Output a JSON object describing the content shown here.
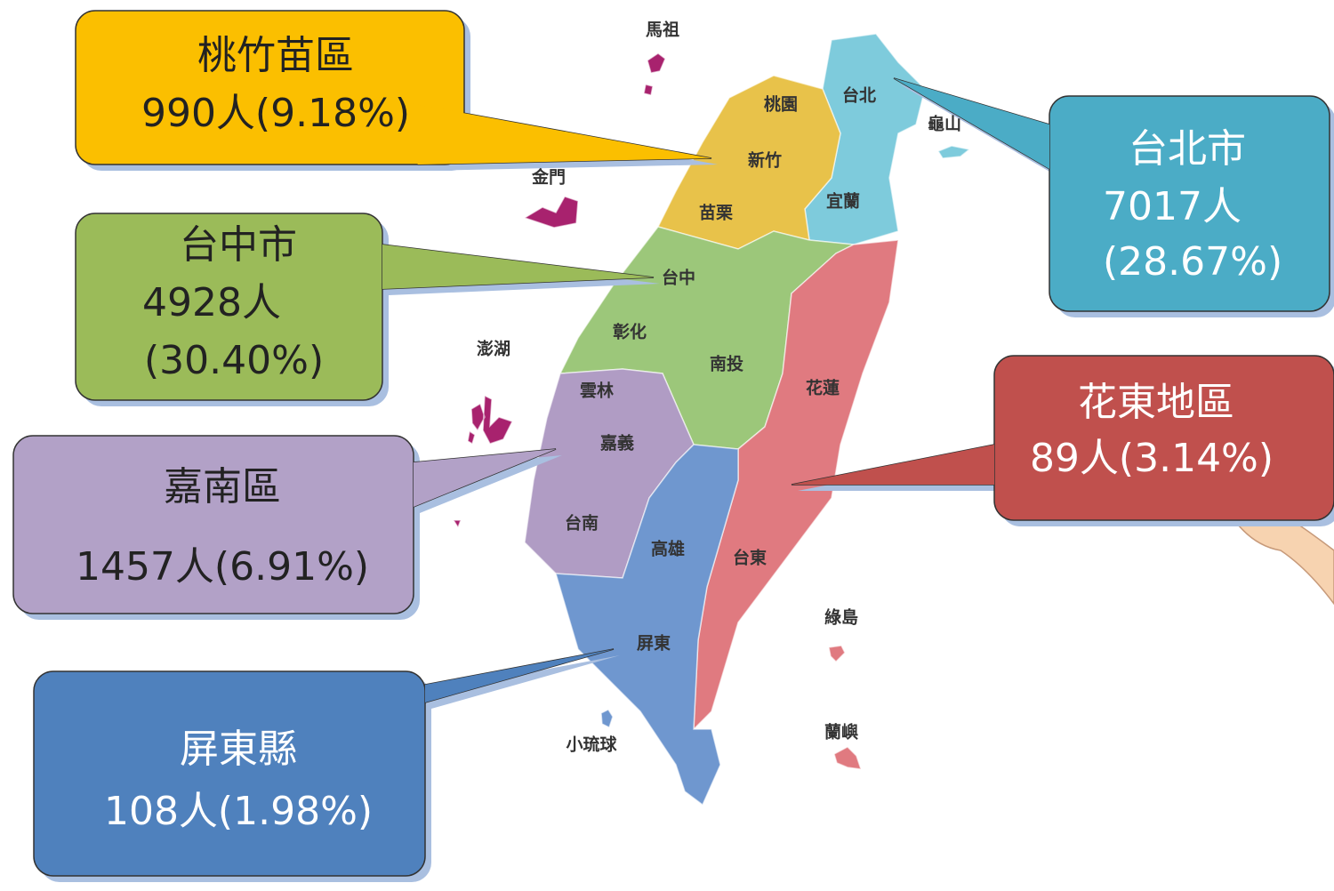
{
  "map_labels": [
    "馬祖",
    "金門",
    "澎湖",
    "台北",
    "龜山",
    "桃園",
    "新竹",
    "宜蘭",
    "苗栗",
    "台中",
    "彰化",
    "南投",
    "雲林",
    "嘉義",
    "花蓮",
    "台南",
    "高雄",
    "台東",
    "屏東",
    "綠島",
    "小琉球",
    "蘭嶼"
  ],
  "callouts": [
    {
      "lines": [
        "桃竹苗區",
        "990人(9.18%)"
      ]
    },
    {
      "lines": [
        "台中市",
        "4928人",
        "(30.40%)"
      ]
    },
    {
      "lines": [
        "嘉南區",
        "1457人(6.91%)"
      ]
    },
    {
      "lines": [
        "屏東縣",
        "108人(1.98%)"
      ]
    },
    {
      "lines": [
        "台北市",
        "7017人",
        "(28.67%)"
      ]
    },
    {
      "lines": [
        "花東地區",
        "89人(3.14%)"
      ]
    }
  ]
}
